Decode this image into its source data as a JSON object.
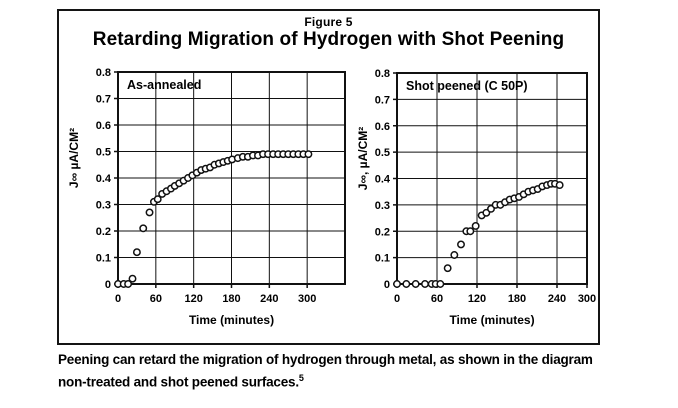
{
  "figure": {
    "figure_label": "Figure 5",
    "title": "Retarding Migration of Hydrogen with Shot Peening"
  },
  "caption": {
    "line1": "Peening can retard the migration of hydrogen through metal, as shown in the diagram",
    "line2": "non-treated and shot peened surfaces.",
    "footnote_ref": "5"
  },
  "colors": {
    "ink": "#111111",
    "background": "#ffffff"
  },
  "chart_data": [
    {
      "type": "scatter",
      "annotation": "As-annealed",
      "xlabel": "Time (minutes)",
      "ylabel": "J∞ µA/CM²",
      "xlim": [
        0,
        360
      ],
      "ylim": [
        0,
        0.8
      ],
      "xticks": [
        0,
        60,
        120,
        180,
        240,
        300
      ],
      "yticks": [
        0,
        0.1,
        0.2,
        0.3,
        0.4,
        0.5,
        0.6,
        0.7,
        0.8
      ],
      "grid": true,
      "legend_position": "none",
      "marker": "open-circle",
      "points": [
        [
          0,
          0
        ],
        [
          9,
          0
        ],
        [
          16,
          0
        ],
        [
          23,
          0.02
        ],
        [
          30,
          0.12
        ],
        [
          40,
          0.21
        ],
        [
          50,
          0.27
        ],
        [
          57,
          0.31
        ],
        [
          63,
          0.32
        ],
        [
          70,
          0.34
        ],
        [
          77,
          0.35
        ],
        [
          84,
          0.36
        ],
        [
          90,
          0.37
        ],
        [
          97,
          0.38
        ],
        [
          104,
          0.39
        ],
        [
          111,
          0.4
        ],
        [
          118,
          0.41
        ],
        [
          125,
          0.42
        ],
        [
          132,
          0.43
        ],
        [
          139,
          0.435
        ],
        [
          146,
          0.44
        ],
        [
          153,
          0.45
        ],
        [
          160,
          0.455
        ],
        [
          167,
          0.46
        ],
        [
          174,
          0.465
        ],
        [
          181,
          0.47
        ],
        [
          190,
          0.475
        ],
        [
          198,
          0.48
        ],
        [
          206,
          0.48
        ],
        [
          214,
          0.485
        ],
        [
          222,
          0.485
        ],
        [
          230,
          0.49
        ],
        [
          238,
          0.49
        ],
        [
          246,
          0.49
        ],
        [
          254,
          0.49
        ],
        [
          262,
          0.49
        ],
        [
          270,
          0.49
        ],
        [
          278,
          0.49
        ],
        [
          286,
          0.49
        ],
        [
          294,
          0.49
        ],
        [
          302,
          0.49
        ]
      ]
    },
    {
      "type": "scatter",
      "annotation": "Shot peened (C 50P)",
      "xlabel": "Time (minutes)",
      "ylabel": "J∞, µA/CM²",
      "xlim": [
        0,
        285
      ],
      "ylim": [
        0,
        0.8
      ],
      "xticks": [
        0,
        60,
        120,
        180,
        240,
        300
      ],
      "yticks": [
        0,
        0.1,
        0.2,
        0.3,
        0.4,
        0.5,
        0.6,
        0.7,
        0.8
      ],
      "grid": true,
      "legend_position": "none",
      "marker": "open-circle",
      "points": [
        [
          0,
          0
        ],
        [
          14,
          0
        ],
        [
          28,
          0
        ],
        [
          42,
          0
        ],
        [
          52,
          0
        ],
        [
          58,
          0
        ],
        [
          65,
          0
        ],
        [
          76,
          0.06
        ],
        [
          86,
          0.11
        ],
        [
          96,
          0.15
        ],
        [
          104,
          0.2
        ],
        [
          110,
          0.2
        ],
        [
          118,
          0.22
        ],
        [
          127,
          0.26
        ],
        [
          134,
          0.27
        ],
        [
          141,
          0.285
        ],
        [
          148,
          0.3
        ],
        [
          155,
          0.3
        ],
        [
          162,
          0.31
        ],
        [
          169,
          0.32
        ],
        [
          176,
          0.325
        ],
        [
          183,
          0.33
        ],
        [
          190,
          0.34
        ],
        [
          197,
          0.35
        ],
        [
          204,
          0.355
        ],
        [
          211,
          0.36
        ],
        [
          218,
          0.37
        ],
        [
          225,
          0.375
        ],
        [
          231,
          0.38
        ],
        [
          237,
          0.38
        ],
        [
          244,
          0.375
        ]
      ]
    }
  ]
}
